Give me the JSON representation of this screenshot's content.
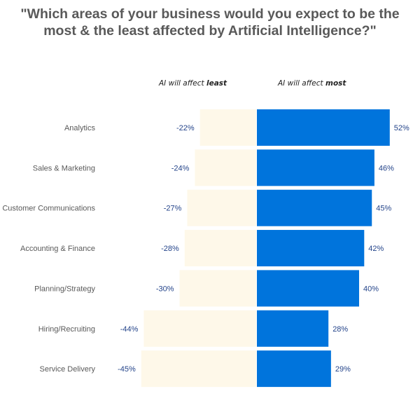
{
  "chart_data": {
    "type": "bar",
    "orientation": "horizontal-diverging",
    "title": "\"Which areas of your business would you expect to be the most & the least affected by Artificial Intelligence?\"",
    "title_lines": [
      "\"Which areas of your business would you expect to be the",
      "most & the least affected by Artificial Intelligence?\""
    ],
    "categories": [
      "Analytics",
      "Sales & Marketing",
      "Customer Communications",
      "Accounting & Finance",
      "Planning/Strategy",
      "Hiring/Recruiting",
      "Service Delivery"
    ],
    "series": [
      {
        "name": "AI will affect least",
        "name_prefix": "AI will affect",
        "name_emph": "least",
        "values": [
          -22,
          -24,
          -27,
          -28,
          -30,
          -44,
          -45
        ],
        "color": "#FEF8E9"
      },
      {
        "name": "AI will affect most",
        "name_prefix": "AI will affect",
        "name_emph": "most",
        "values": [
          52,
          46,
          45,
          42,
          40,
          28,
          29
        ],
        "color": "#0074DC"
      }
    ],
    "value_suffix": "%",
    "label_color": "#24448A",
    "category_color": "#595959",
    "grid": false,
    "legend": "top"
  }
}
